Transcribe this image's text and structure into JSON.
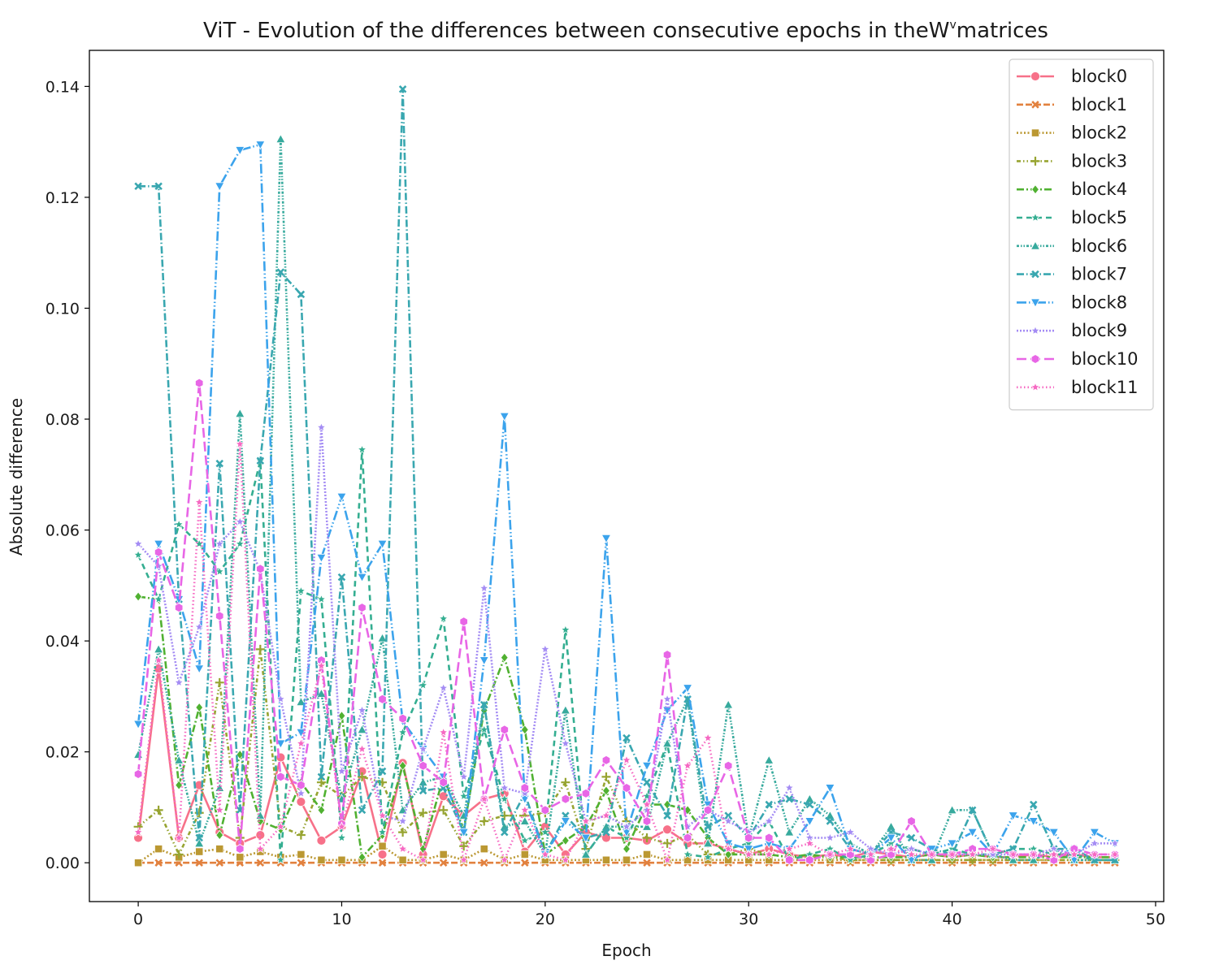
{
  "chart_data": {
    "type": "line",
    "title": "ViT - Evolution of the differences between consecutive epochs in the",
    "title_symbol": "W",
    "title_superscript": "v",
    "title_suffix": "matrices",
    "xlabel": "Epoch",
    "ylabel": "Absolute difference",
    "xlim": [
      -2.4,
      50.4
    ],
    "ylim": [
      -0.007,
      0.1465
    ],
    "xticks": [
      "0",
      "10",
      "20",
      "30",
      "40",
      "50"
    ],
    "yticks": [
      "0.00",
      "0.02",
      "0.04",
      "0.06",
      "0.08",
      "0.10",
      "0.12",
      "0.14"
    ],
    "grid": false,
    "legend_position": "top-right",
    "x": [
      0,
      1,
      2,
      3,
      4,
      5,
      6,
      7,
      8,
      9,
      10,
      11,
      12,
      13,
      14,
      15,
      16,
      17,
      18,
      19,
      20,
      21,
      22,
      23,
      24,
      25,
      26,
      27,
      28,
      29,
      30,
      31,
      32,
      33,
      34,
      35,
      36,
      37,
      38,
      39,
      40,
      41,
      42,
      43,
      44,
      45,
      46,
      47,
      48
    ],
    "series": [
      {
        "name": "block0",
        "color": "#f77189",
        "dash": "",
        "marker": "circle",
        "values": [
          0.0045,
          0.035,
          0.0045,
          0.014,
          0.0055,
          0.0035,
          0.005,
          0.019,
          0.011,
          0.004,
          0.0065,
          0.0165,
          0.0015,
          0.018,
          0.0015,
          0.012,
          0.0085,
          0.0115,
          0.0125,
          0.002,
          0.0065,
          0.0015,
          0.0055,
          0.0045,
          0.0045,
          0.004,
          0.006,
          0.0035,
          0.0035,
          0.0025,
          0.0015,
          0.0025,
          0.0015,
          0.001,
          0.0015,
          0.001,
          0.002,
          0.0015,
          0.001,
          0.0015,
          0.001,
          0.0015,
          0.001,
          0.001,
          0.0015,
          0.001,
          0.0015,
          0.001,
          0.001
        ]
      },
      {
        "name": "block1",
        "color": "#e2813e",
        "dash": "8,3",
        "marker": "x",
        "values": [
          0.0,
          0.0,
          0.0,
          0.0,
          0.0,
          0.0,
          0.0,
          0.0,
          0.0,
          0.0,
          0.0,
          0.0,
          0.0,
          0.0,
          0.0,
          0.0,
          0.0,
          0.0,
          0.0,
          0.0,
          0.0,
          0.0,
          0.0,
          0.0,
          0.0,
          0.0,
          0.0,
          0.0,
          0.0,
          0.0,
          0.0,
          0.0,
          0.0,
          0.0,
          0.0,
          0.0,
          0.0,
          0.0,
          0.0,
          0.0,
          0.0,
          0.0,
          0.0,
          0.0,
          0.0,
          0.0,
          0.0,
          0.0,
          0.0
        ]
      },
      {
        "name": "block2",
        "color": "#bb9832",
        "dash": "2,2.5",
        "marker": "square",
        "values": [
          0.0,
          0.0025,
          0.001,
          0.002,
          0.0025,
          0.001,
          0.002,
          0.001,
          0.0015,
          0.0005,
          0.0005,
          0.0005,
          0.003,
          0.0005,
          0.0005,
          0.0015,
          0.0005,
          0.0025,
          0.0005,
          0.0015,
          0.0005,
          0.0005,
          0.0005,
          0.0005,
          0.0005,
          0.0015,
          0.0005,
          0.0005,
          0.0005,
          0.0005,
          0.0005,
          0.0005,
          0.0005,
          0.0005,
          0.0005,
          0.0005,
          0.0005,
          0.0005,
          0.0005,
          0.0005,
          0.0005,
          0.0005,
          0.0005,
          0.0005,
          0.0005,
          0.0005,
          0.0005,
          0.0005,
          0.0005
        ]
      },
      {
        "name": "block3",
        "color": "#97a431",
        "dash": "5,3,1.5,3,1.5,3",
        "marker": "plus",
        "values": [
          0.0065,
          0.0095,
          0.0015,
          0.009,
          0.0325,
          0.0045,
          0.0385,
          0.0065,
          0.005,
          0.0145,
          0.012,
          0.0155,
          0.0145,
          0.0055,
          0.009,
          0.0095,
          0.003,
          0.0075,
          0.0085,
          0.0085,
          0.009,
          0.0145,
          0.0025,
          0.0155,
          0.0075,
          0.0045,
          0.0035,
          0.005,
          0.0015,
          0.0015,
          0.0025,
          0.0015,
          0.001,
          0.001,
          0.001,
          0.0005,
          0.0005,
          0.0005,
          0.0005,
          0.0005,
          0.0005,
          0.0005,
          0.0005,
          0.0005,
          0.0005,
          0.0005,
          0.0005,
          0.0005,
          0.0005
        ]
      },
      {
        "name": "block4",
        "color": "#50b131",
        "dash": "9,3,2,3",
        "marker": "diamond",
        "values": [
          0.048,
          0.0475,
          0.014,
          0.028,
          0.005,
          0.0195,
          0.0075,
          0.006,
          0.0145,
          0.0095,
          0.0265,
          0.001,
          0.005,
          0.0175,
          0.0025,
          0.0155,
          0.006,
          0.0275,
          0.037,
          0.024,
          0.0015,
          0.004,
          0.0065,
          0.013,
          0.0025,
          0.0105,
          0.0105,
          0.0095,
          0.0045,
          0.0015,
          0.0015,
          0.0015,
          0.001,
          0.0015,
          0.001,
          0.001,
          0.001,
          0.001,
          0.001,
          0.0015,
          0.001,
          0.0015,
          0.001,
          0.001,
          0.001,
          0.001,
          0.001,
          0.001,
          0.001
        ]
      },
      {
        "name": "block5",
        "color": "#34ae91",
        "dash": "7,5",
        "marker": "star",
        "values": [
          0.0555,
          0.0475,
          0.061,
          0.0575,
          0.0525,
          0.0575,
          0.0725,
          0.0005,
          0.049,
          0.0475,
          0.0045,
          0.0745,
          0.0055,
          0.0235,
          0.032,
          0.044,
          0.012,
          0.024,
          0.0115,
          0.004,
          0.0055,
          0.042,
          0.0015,
          0.0065,
          0.0045,
          0.012,
          0.0215,
          0.0015,
          0.001,
          0.0025,
          0.0035,
          0.0075,
          0.0005,
          0.0015,
          0.0025,
          0.0005,
          0.0015,
          0.0035,
          0.0025,
          0.0015,
          0.0025,
          0.0015,
          0.0015,
          0.0025,
          0.0025,
          0.0015,
          0.0015,
          0.0005,
          0.0005
        ]
      },
      {
        "name": "block6",
        "color": "#37aa9d",
        "dash": "3,2,1.5,2,1.5,2",
        "marker": "triangle-up",
        "values": [
          0.0195,
          0.0385,
          0.0185,
          0.0035,
          0.0135,
          0.081,
          0.0085,
          0.1305,
          0.029,
          0.0305,
          0.0115,
          0.024,
          0.0405,
          0.0095,
          0.0145,
          0.0155,
          0.0085,
          0.0285,
          0.0065,
          0.0075,
          0.0015,
          0.0275,
          0.0015,
          0.0065,
          0.0065,
          0.0065,
          0.0215,
          0.0295,
          0.0035,
          0.0285,
          0.0045,
          0.0185,
          0.0055,
          0.0115,
          0.0085,
          0.0035,
          0.0015,
          0.0065,
          0.0005,
          0.0005,
          0.0095,
          0.0095,
          0.0015,
          0.0005,
          0.0005,
          0.0025,
          0.0005,
          0.0005,
          0.0005
        ]
      },
      {
        "name": "block7",
        "color": "#39a7b0",
        "dash": "9,3,1.5,3",
        "marker": "x",
        "values": [
          0.122,
          0.122,
          0.0475,
          0.0045,
          0.072,
          0.0095,
          0.0725,
          0.1065,
          0.1025,
          0.0155,
          0.0515,
          0.0095,
          0.0165,
          0.1395,
          0.013,
          0.0135,
          0.0055,
          0.0285,
          0.0055,
          0.0125,
          0.0015,
          0.0085,
          0.0045,
          0.0055,
          0.0225,
          0.0145,
          0.0085,
          0.0295,
          0.0065,
          0.0085,
          0.0045,
          0.0105,
          0.0115,
          0.0105,
          0.0075,
          0.0025,
          0.0015,
          0.0055,
          0.0045,
          0.0025,
          0.0015,
          0.0095,
          0.0015,
          0.0025,
          0.0105,
          0.0025,
          0.0025,
          0.0005,
          0.0005
        ]
      },
      {
        "name": "block8",
        "color": "#3ba3ec",
        "dash": "12,3,1.5,3,1.5,3",
        "marker": "triangle-down",
        "values": [
          0.025,
          0.0575,
          0.0475,
          0.035,
          0.122,
          0.1285,
          0.1295,
          0.0215,
          0.0235,
          0.055,
          0.066,
          0.0515,
          0.0575,
          0.0255,
          0.0205,
          0.0155,
          0.0055,
          0.0365,
          0.0805,
          0.0115,
          0.0015,
          0.0075,
          0.0045,
          0.0585,
          0.0055,
          0.0175,
          0.0275,
          0.0315,
          0.0105,
          0.0035,
          0.0025,
          0.0035,
          0.0025,
          0.0075,
          0.0135,
          0.0025,
          0.0015,
          0.0045,
          0.0005,
          0.0025,
          0.0035,
          0.0055,
          0.0015,
          0.0085,
          0.0075,
          0.0055,
          0.0005,
          0.0055,
          0.0035
        ]
      },
      {
        "name": "block9",
        "color": "#a48cf4",
        "dash": "2,2",
        "marker": "star",
        "values": [
          0.0575,
          0.0535,
          0.0325,
          0.0425,
          0.0575,
          0.0615,
          0.0525,
          0.0295,
          0.0125,
          0.0785,
          0.0165,
          0.0275,
          0.0085,
          0.0075,
          0.0205,
          0.0315,
          0.0155,
          0.0495,
          0.0135,
          0.0125,
          0.0385,
          0.0215,
          0.0075,
          0.0085,
          0.0065,
          0.0095,
          0.0295,
          0.0065,
          0.0095,
          0.0075,
          0.0055,
          0.0075,
          0.0135,
          0.0045,
          0.0045,
          0.0055,
          0.0025,
          0.0015,
          0.0025,
          0.0015,
          0.0015,
          0.0015,
          0.0015,
          0.0015,
          0.0015,
          0.0025,
          0.0015,
          0.0035,
          0.0035
        ]
      },
      {
        "name": "block10",
        "color": "#e866e6",
        "dash": "12,5",
        "marker": "hexagon",
        "values": [
          0.016,
          0.056,
          0.046,
          0.0865,
          0.0445,
          0.0025,
          0.053,
          0.0155,
          0.014,
          0.0365,
          0.007,
          0.046,
          0.0295,
          0.026,
          0.0175,
          0.0145,
          0.0435,
          0.0115,
          0.024,
          0.0135,
          0.0095,
          0.0115,
          0.0125,
          0.0185,
          0.0135,
          0.0075,
          0.0375,
          0.0045,
          0.0095,
          0.0175,
          0.0045,
          0.0045,
          0.0005,
          0.0005,
          0.0015,
          0.0015,
          0.0005,
          0.0015,
          0.0075,
          0.0015,
          0.0015,
          0.0025,
          0.0025,
          0.0015,
          0.0015,
          0.0005,
          0.0025,
          0.0015,
          0.0015
        ]
      },
      {
        "name": "block11",
        "color": "#f668c2",
        "dash": "1.5,3",
        "marker": "star",
        "values": [
          0.0055,
          0.0365,
          0.0045,
          0.065,
          0.0095,
          0.0755,
          0.0025,
          0.0065,
          0.0215,
          0.0355,
          0.0065,
          0.0205,
          0.0085,
          0.0025,
          0.0005,
          0.0235,
          0.0005,
          0.0115,
          0.0005,
          0.0095,
          0.0015,
          0.0005,
          0.0075,
          0.0085,
          0.0185,
          0.0105,
          0.0005,
          0.0175,
          0.0225,
          0.0025,
          0.0015,
          0.0015,
          0.0025,
          0.0035,
          0.0015,
          0.0025,
          0.0015,
          0.0025,
          0.0015,
          0.0015,
          0.0015,
          0.0015,
          0.0025,
          0.0015,
          0.0015,
          0.0015,
          0.0015,
          0.0015,
          0.0015
        ]
      }
    ]
  }
}
